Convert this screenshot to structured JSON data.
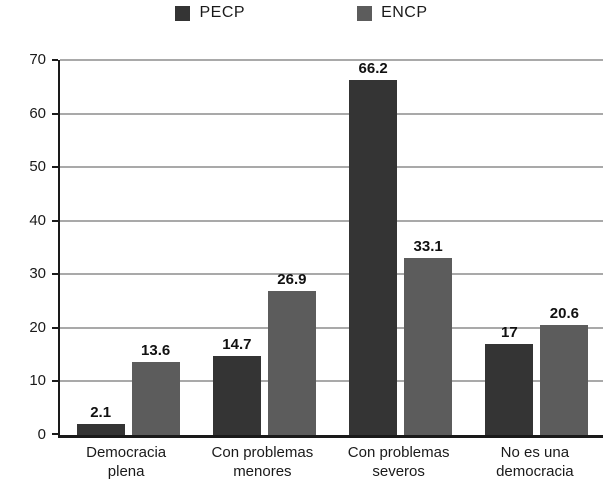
{
  "chart_data": {
    "type": "bar",
    "title": "",
    "xlabel": "",
    "ylabel": "",
    "categories": [
      "Democracia plena",
      "Con problemas menores",
      "Con problemas severos",
      "No es una democracia"
    ],
    "series": [
      {
        "name": "PECP",
        "color": "#343434",
        "values": [
          2.1,
          14.7,
          66.2,
          17
        ]
      },
      {
        "name": "ENCP",
        "color": "#5c5c5c",
        "values": [
          13.6,
          26.9,
          33.1,
          20.6
        ]
      }
    ],
    "ylim": [
      0,
      70
    ],
    "yticks": [
      0,
      10,
      20,
      30,
      40,
      50,
      60,
      70
    ],
    "grid": true,
    "legend_position": "top"
  },
  "colors": {
    "background": "#ffffff",
    "gridline": "#a9a9a9",
    "axis": "#1a1a1a",
    "text": "#1a1a1a"
  }
}
